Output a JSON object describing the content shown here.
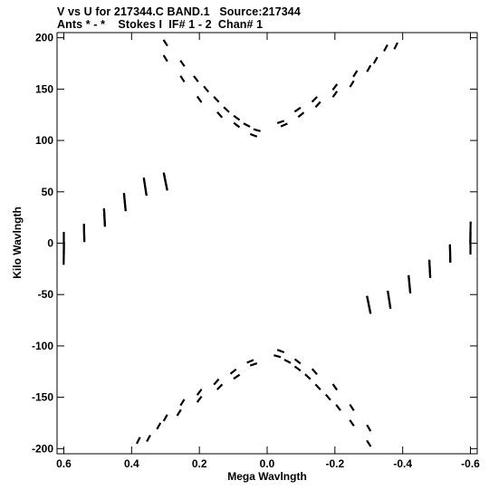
{
  "chart_data": {
    "type": "scatter",
    "title_line1": "V vs U for 217344.C BAND.1   Source:217344",
    "title_line2": "Ants * - *    Stokes I  IF# 1 - 2  Chan# 1",
    "xlabel": "Mega Wavlngth",
    "ylabel": "Kilo Wavlngth",
    "xlim": [
      0.62,
      -0.62
    ],
    "ylim": [
      -205,
      205
    ],
    "x_ticks": [
      0.6,
      0.4,
      0.2,
      0.0,
      -0.2,
      -0.4,
      -0.6
    ],
    "x_tick_labels": [
      "0.6",
      "0.4",
      "0.2",
      "0.0",
      "-0.2",
      "-0.4",
      "-0.6"
    ],
    "y_ticks": [
      200,
      150,
      100,
      50,
      0,
      -50,
      -100,
      -150,
      -200
    ],
    "y_tick_labels": [
      "200",
      "150",
      "100",
      "50",
      "0",
      "-50",
      "-100",
      "-150",
      "-200"
    ],
    "grid": false,
    "series": [
      {
        "tracks": [
          {
            "u": 0.3,
            "v": 195,
            "len": 8
          },
          {
            "u": 0.25,
            "v": 175,
            "len": 8
          },
          {
            "u": 0.21,
            "v": 160,
            "len": 8
          },
          {
            "u": 0.18,
            "v": 150,
            "len": 8
          },
          {
            "u": 0.15,
            "v": 140,
            "len": 8
          },
          {
            "u": 0.12,
            "v": 130,
            "len": 8
          },
          {
            "u": 0.09,
            "v": 122,
            "len": 8
          },
          {
            "u": 0.06,
            "v": 115,
            "len": 8
          },
          {
            "u": 0.03,
            "v": 110,
            "len": 8
          },
          {
            "u": -0.04,
            "v": 118,
            "len": 8
          },
          {
            "u": -0.09,
            "v": 130,
            "len": 8
          },
          {
            "u": -0.14,
            "v": 140,
            "len": 8
          },
          {
            "u": -0.2,
            "v": 152,
            "len": 8
          },
          {
            "u": -0.26,
            "v": 165,
            "len": 8
          },
          {
            "u": -0.32,
            "v": 178,
            "len": 8
          },
          {
            "u": -0.38,
            "v": 192,
            "len": 8
          },
          {
            "u": 0.6,
            "v": 0,
            "len": 25
          },
          {
            "u": 0.54,
            "v": 10,
            "len": 20
          },
          {
            "u": 0.48,
            "v": 25,
            "len": 20
          },
          {
            "u": 0.42,
            "v": 40,
            "len": 20
          },
          {
            "u": 0.36,
            "v": 55,
            "len": 20
          },
          {
            "u": 0.3,
            "v": 60,
            "len": 20
          },
          {
            "u": -0.6,
            "v": 10,
            "len": 25
          },
          {
            "u": -0.54,
            "v": -10,
            "len": 20
          },
          {
            "u": -0.48,
            "v": -25,
            "len": 20
          },
          {
            "u": -0.42,
            "v": -40,
            "len": 20
          },
          {
            "u": -0.36,
            "v": -55,
            "len": 20
          },
          {
            "u": -0.3,
            "v": -60,
            "len": 20
          },
          {
            "u": 0.35,
            "v": -190,
            "len": 8
          },
          {
            "u": 0.3,
            "v": -170,
            "len": 8
          },
          {
            "u": 0.25,
            "v": -155,
            "len": 8
          },
          {
            "u": 0.2,
            "v": -145,
            "len": 8
          },
          {
            "u": 0.15,
            "v": -135,
            "len": 8
          },
          {
            "u": 0.1,
            "v": -125,
            "len": 8
          },
          {
            "u": 0.05,
            "v": -115,
            "len": 8
          },
          {
            "u": -0.04,
            "v": -105,
            "len": 8
          },
          {
            "u": -0.09,
            "v": -115,
            "len": 8
          },
          {
            "u": -0.14,
            "v": -125,
            "len": 8
          },
          {
            "u": -0.2,
            "v": -140,
            "len": 8
          },
          {
            "u": -0.25,
            "v": -160,
            "len": 8
          },
          {
            "u": -0.3,
            "v": -180,
            "len": 8
          }
        ]
      }
    ]
  }
}
